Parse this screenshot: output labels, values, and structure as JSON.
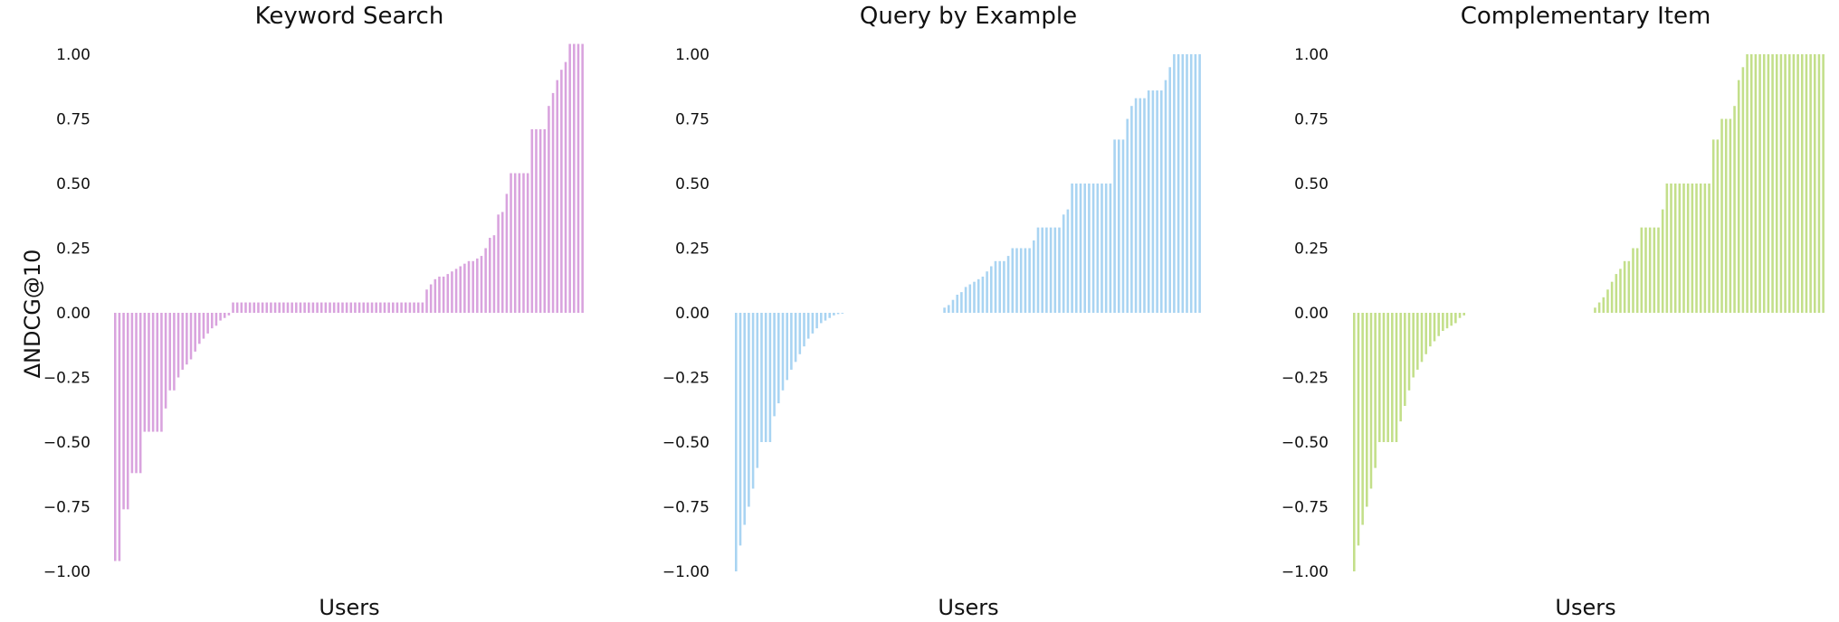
{
  "figure": {
    "ylabel": "ΔNDCG@10",
    "xlabel": "Users"
  },
  "chart_data": [
    {
      "type": "bar",
      "title": "Keyword Search",
      "xlabel": "Users",
      "ylabel": "ΔNDCG@10",
      "ylim": [
        -1.05,
        1.05
      ],
      "yticks": [
        "−1.00",
        "−0.75",
        "−0.50",
        "−0.25",
        "0.00",
        "0.25",
        "0.50",
        "0.75",
        "1.00"
      ],
      "grid": false,
      "color": "#d9a3de",
      "values": [
        -0.96,
        -0.96,
        -0.76,
        -0.76,
        -0.62,
        -0.62,
        -0.62,
        -0.46,
        -0.46,
        -0.46,
        -0.46,
        -0.46,
        -0.37,
        -0.3,
        -0.3,
        -0.25,
        -0.22,
        -0.2,
        -0.18,
        -0.15,
        -0.12,
        -0.1,
        -0.08,
        -0.06,
        -0.05,
        -0.03,
        -0.02,
        -0.01,
        0.04,
        0.04,
        0.04,
        0.04,
        0.04,
        0.04,
        0.04,
        0.04,
        0.04,
        0.04,
        0.04,
        0.04,
        0.04,
        0.04,
        0.04,
        0.04,
        0.04,
        0.04,
        0.04,
        0.04,
        0.04,
        0.04,
        0.04,
        0.04,
        0.04,
        0.04,
        0.04,
        0.04,
        0.04,
        0.04,
        0.04,
        0.04,
        0.04,
        0.04,
        0.04,
        0.04,
        0.04,
        0.04,
        0.04,
        0.04,
        0.04,
        0.04,
        0.04,
        0.04,
        0.04,
        0.04,
        0.09,
        0.11,
        0.13,
        0.14,
        0.14,
        0.15,
        0.16,
        0.17,
        0.18,
        0.19,
        0.2,
        0.2,
        0.21,
        0.22,
        0.25,
        0.29,
        0.3,
        0.38,
        0.39,
        0.46,
        0.54,
        0.54,
        0.54,
        0.54,
        0.54,
        0.71,
        0.71,
        0.71,
        0.71,
        0.8,
        0.85,
        0.9,
        0.94,
        0.97,
        1.04,
        1.04,
        1.04,
        1.04
      ]
    },
    {
      "type": "bar",
      "title": "Query by Example",
      "xlabel": "Users",
      "ylim": [
        -1.05,
        1.05
      ],
      "yticks": [
        "−1.00",
        "−0.75",
        "−0.50",
        "−0.25",
        "0.00",
        "0.25",
        "0.50",
        "0.75",
        "1.00"
      ],
      "grid": false,
      "color": "#a9d4f2",
      "values": [
        -1.0,
        -0.9,
        -0.82,
        -0.75,
        -0.68,
        -0.6,
        -0.5,
        -0.5,
        -0.5,
        -0.4,
        -0.35,
        -0.3,
        -0.26,
        -0.22,
        -0.19,
        -0.16,
        -0.13,
        -0.1,
        -0.08,
        -0.06,
        -0.04,
        -0.03,
        -0.02,
        -0.01,
        -0.005,
        -0.003,
        0,
        0,
        0,
        0,
        0,
        0,
        0,
        0,
        0,
        0,
        0,
        0,
        0,
        0,
        0,
        0,
        0,
        0,
        0,
        0,
        0,
        0,
        0,
        0.02,
        0.03,
        0.05,
        0.07,
        0.08,
        0.1,
        0.11,
        0.12,
        0.13,
        0.14,
        0.16,
        0.18,
        0.2,
        0.2,
        0.2,
        0.22,
        0.25,
        0.25,
        0.25,
        0.25,
        0.25,
        0.28,
        0.33,
        0.33,
        0.33,
        0.33,
        0.33,
        0.33,
        0.38,
        0.4,
        0.5,
        0.5,
        0.5,
        0.5,
        0.5,
        0.5,
        0.5,
        0.5,
        0.5,
        0.5,
        0.67,
        0.67,
        0.67,
        0.75,
        0.8,
        0.83,
        0.83,
        0.83,
        0.86,
        0.86,
        0.86,
        0.86,
        0.9,
        0.95,
        1.0,
        1.0,
        1.0,
        1.0,
        1.0,
        1.0,
        1.0
      ]
    },
    {
      "type": "bar",
      "title": "Complementary Item",
      "xlabel": "Users",
      "ylim": [
        -1.05,
        1.05
      ],
      "yticks": [
        "−1.00",
        "−0.75",
        "−0.50",
        "−0.25",
        "0.00",
        "0.25",
        "0.50",
        "0.75",
        "1.00"
      ],
      "grid": false,
      "color": "#c3df8a",
      "values": [
        -1.0,
        -0.9,
        -0.82,
        -0.75,
        -0.68,
        -0.6,
        -0.5,
        -0.5,
        -0.5,
        -0.5,
        -0.5,
        -0.42,
        -0.36,
        -0.3,
        -0.25,
        -0.22,
        -0.19,
        -0.16,
        -0.13,
        -0.11,
        -0.09,
        -0.07,
        -0.06,
        -0.05,
        -0.04,
        -0.02,
        -0.01,
        0,
        0,
        0,
        0,
        0,
        0,
        0,
        0,
        0,
        0,
        0,
        0,
        0,
        0,
        0,
        0,
        0,
        0,
        0,
        0,
        0,
        0,
        0,
        0,
        0,
        0,
        0,
        0,
        0,
        0,
        0.02,
        0.04,
        0.06,
        0.09,
        0.12,
        0.15,
        0.17,
        0.2,
        0.2,
        0.25,
        0.25,
        0.33,
        0.33,
        0.33,
        0.33,
        0.33,
        0.4,
        0.5,
        0.5,
        0.5,
        0.5,
        0.5,
        0.5,
        0.5,
        0.5,
        0.5,
        0.5,
        0.5,
        0.67,
        0.67,
        0.75,
        0.75,
        0.75,
        0.8,
        0.9,
        0.95,
        1.0,
        1.0,
        1.0,
        1.0,
        1.0,
        1.0,
        1.0,
        1.0,
        1.0,
        1.0,
        1.0,
        1.0,
        1.0,
        1.0,
        1.0,
        1.0,
        1.0,
        1.0,
        1.0
      ]
    }
  ]
}
